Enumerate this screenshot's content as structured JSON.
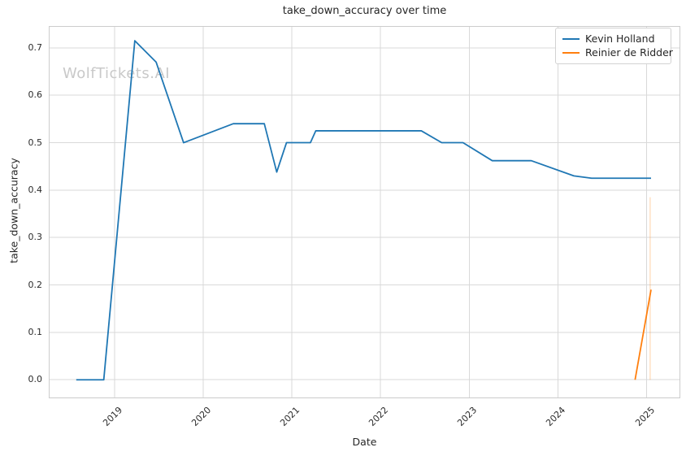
{
  "watermark": "WolfTickets.AI",
  "chart_data": {
    "type": "line",
    "title": "take_down_accuracy over time",
    "xlabel": "Date",
    "ylabel": "take_down_accuracy",
    "grid": true,
    "legend_position": "upper right",
    "x_unit": "decimal_year",
    "xlim": [
      2018.26,
      2025.38
    ],
    "ylim": [
      -0.039,
      0.746
    ],
    "x_ticks": [
      2019,
      2020,
      2021,
      2022,
      2023,
      2024,
      2025
    ],
    "x_tick_labels": [
      "2019",
      "2020",
      "2021",
      "2022",
      "2023",
      "2024",
      "2025"
    ],
    "y_ticks": [
      0.0,
      0.1,
      0.2,
      0.3,
      0.4,
      0.5,
      0.6,
      0.7
    ],
    "y_tick_labels": [
      "0.0",
      "0.1",
      "0.2",
      "0.3",
      "0.4",
      "0.5",
      "0.6",
      "0.7"
    ],
    "series": [
      {
        "name": "Kevin Holland",
        "color": "#1f77b4",
        "x": [
          2018.57,
          2018.88,
          2019.23,
          2019.47,
          2019.78,
          2020.34,
          2020.69,
          2020.83,
          2020.94,
          2021.21,
          2021.27,
          2022.46,
          2022.69,
          2022.93,
          2023.26,
          2023.7,
          2024.18,
          2024.38,
          2025.05
        ],
        "y": [
          0.0,
          0.0,
          0.715,
          0.67,
          0.5,
          0.54,
          0.54,
          0.438,
          0.5,
          0.5,
          0.525,
          0.525,
          0.5,
          0.5,
          0.462,
          0.462,
          0.43,
          0.425,
          0.425
        ]
      },
      {
        "name": "Reinier de Ridder",
        "color": "#ff7f0e",
        "x": [
          2024.87,
          2025.05
        ],
        "y": [
          0.0,
          0.19
        ]
      }
    ],
    "annotations": [
      {
        "type": "vline",
        "x": 2025.04,
        "y0": 0.0,
        "y1": 0.385,
        "color": "#ff7f0e",
        "opacity": 0.3
      }
    ]
  },
  "style": {
    "grid_color": "#d9d9d9",
    "spine_color": "#cccccc",
    "watermark_color": "#c9c9c9",
    "background": "#ffffff"
  }
}
